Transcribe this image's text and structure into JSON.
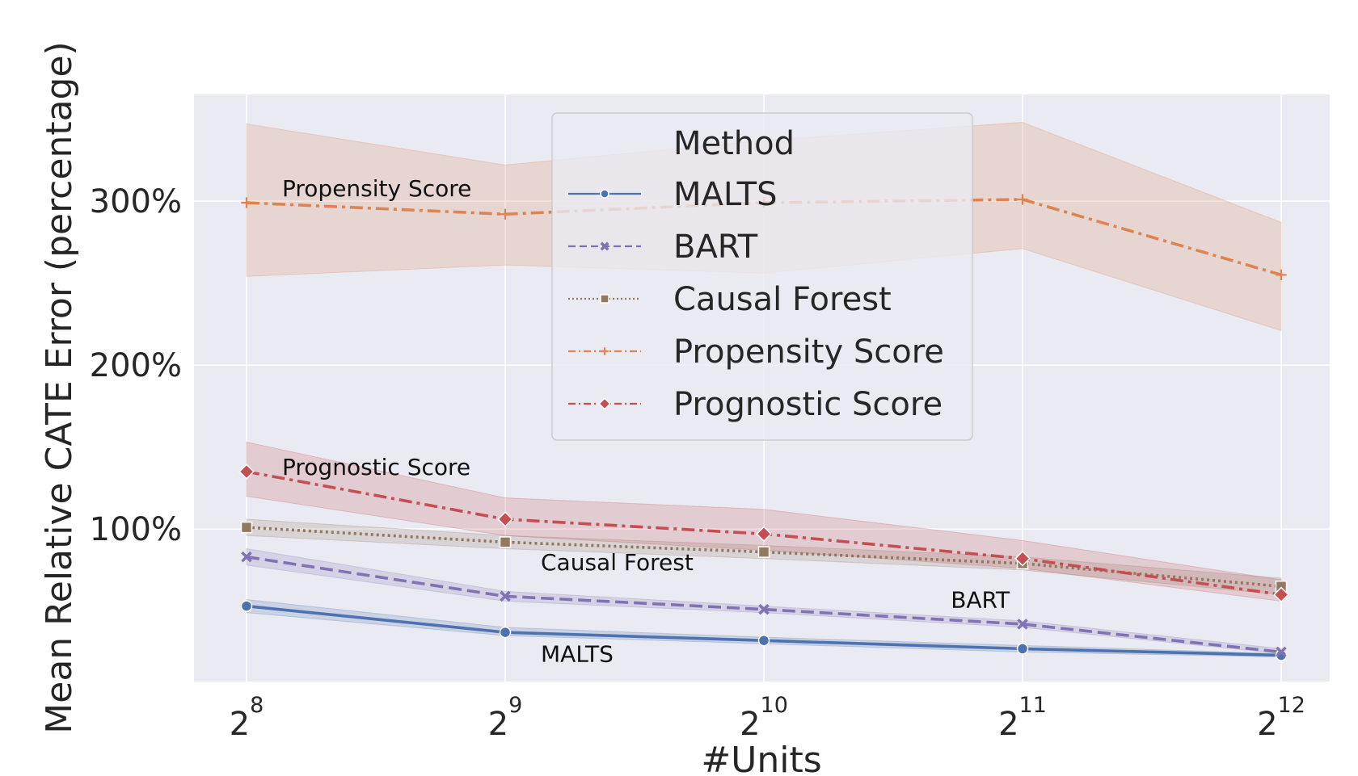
{
  "chart_data": {
    "type": "line",
    "xlabel": "#Units",
    "ylabel": "Mean Relative CATE Error (percentage)",
    "x_scale": "log2",
    "x": [
      256,
      512,
      1024,
      2048,
      4096
    ],
    "x_tick_base": "2",
    "x_tick_exponents": [
      "8",
      "9",
      "10",
      "11",
      "12"
    ],
    "y_ticks": [
      100,
      200,
      300
    ],
    "y_tick_labels": [
      "100%",
      "200%",
      "300%"
    ],
    "ylim": [
      7,
      365
    ],
    "grid": true,
    "legend": {
      "title": "Method",
      "placement": "top-center",
      "entries": [
        "MALTS",
        "BART",
        "Causal Forest",
        "Propensity Score",
        "Prognostic Score"
      ]
    },
    "series": [
      {
        "name": "MALTS",
        "color": "#4c72b0",
        "marker": "circle",
        "dash": "solid",
        "values": [
          53,
          37,
          32,
          27,
          23
        ],
        "lower": [
          49,
          35,
          30,
          25,
          22
        ],
        "upper": [
          57,
          40,
          34,
          29,
          24
        ]
      },
      {
        "name": "BART",
        "color": "#8172b3",
        "marker": "x",
        "dash": "dashed",
        "values": [
          83,
          59,
          51,
          42,
          25
        ],
        "lower": [
          78,
          56,
          49,
          40,
          24
        ],
        "upper": [
          88,
          62,
          53,
          44,
          27
        ]
      },
      {
        "name": "Causal Forest",
        "color": "#937860",
        "marker": "square",
        "dash": "dotted",
        "values": [
          101,
          92,
          86,
          79,
          65
        ],
        "lower": [
          96,
          88,
          82,
          75,
          60
        ],
        "upper": [
          106,
          96,
          90,
          83,
          70
        ]
      },
      {
        "name": "Propensity Score",
        "color": "#dd8452",
        "marker": "plus",
        "dash": "dashdot",
        "values": [
          299,
          292,
          299,
          301,
          255
        ],
        "lower": [
          254,
          261,
          256,
          271,
          221
        ],
        "upper": [
          347,
          322,
          337,
          348,
          287
        ]
      },
      {
        "name": "Prognostic Score",
        "color": "#c44e52",
        "marker": "diamond",
        "dash": "dashdot",
        "values": [
          135,
          106,
          97,
          82,
          60
        ],
        "lower": [
          120,
          96,
          87,
          76,
          56
        ],
        "upper": [
          153,
          119,
          112,
          93,
          69
        ]
      }
    ],
    "annotations": [
      {
        "text": "Propensity Score",
        "x": 256,
        "y": 308
      },
      {
        "text": "Prognostic Score",
        "x": 256,
        "y": 138
      },
      {
        "text": "Causal Forest",
        "x": 512,
        "y": 80
      },
      {
        "text": "BART",
        "x": 1536,
        "y": 57
      },
      {
        "text": "MALTS",
        "x": 512,
        "y": 24
      }
    ]
  }
}
